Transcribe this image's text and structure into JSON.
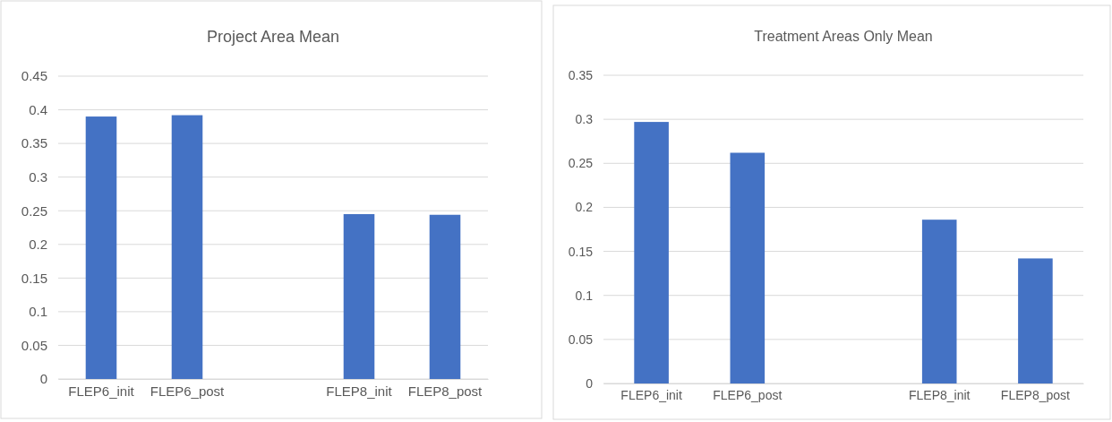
{
  "chart_data": [
    {
      "type": "bar",
      "title": "Project Area Mean",
      "categories": [
        "FLEP6_init",
        "FLEP6_post",
        null,
        "FLEP8_init",
        "FLEP8_post"
      ],
      "values": [
        0.39,
        0.392,
        null,
        0.245,
        0.244
      ],
      "color": "#4472c4",
      "ylim": [
        0,
        0.45
      ],
      "yticks": [
        0,
        0.05,
        0.1,
        0.15,
        0.2,
        0.25,
        0.3,
        0.35,
        0.4,
        0.45
      ],
      "grid": "y"
    },
    {
      "type": "bar",
      "title": "Treatment Areas Only Mean",
      "categories": [
        "FLEP6_init",
        "FLEP6_post",
        null,
        "FLEP8_init",
        "FLEP8_post"
      ],
      "values": [
        0.297,
        0.262,
        null,
        0.186,
        0.142
      ],
      "color": "#4472c4",
      "ylim": [
        0,
        0.35
      ],
      "yticks": [
        0,
        0.05,
        0.1,
        0.15,
        0.2,
        0.25,
        0.3,
        0.35
      ],
      "grid": "y"
    }
  ]
}
